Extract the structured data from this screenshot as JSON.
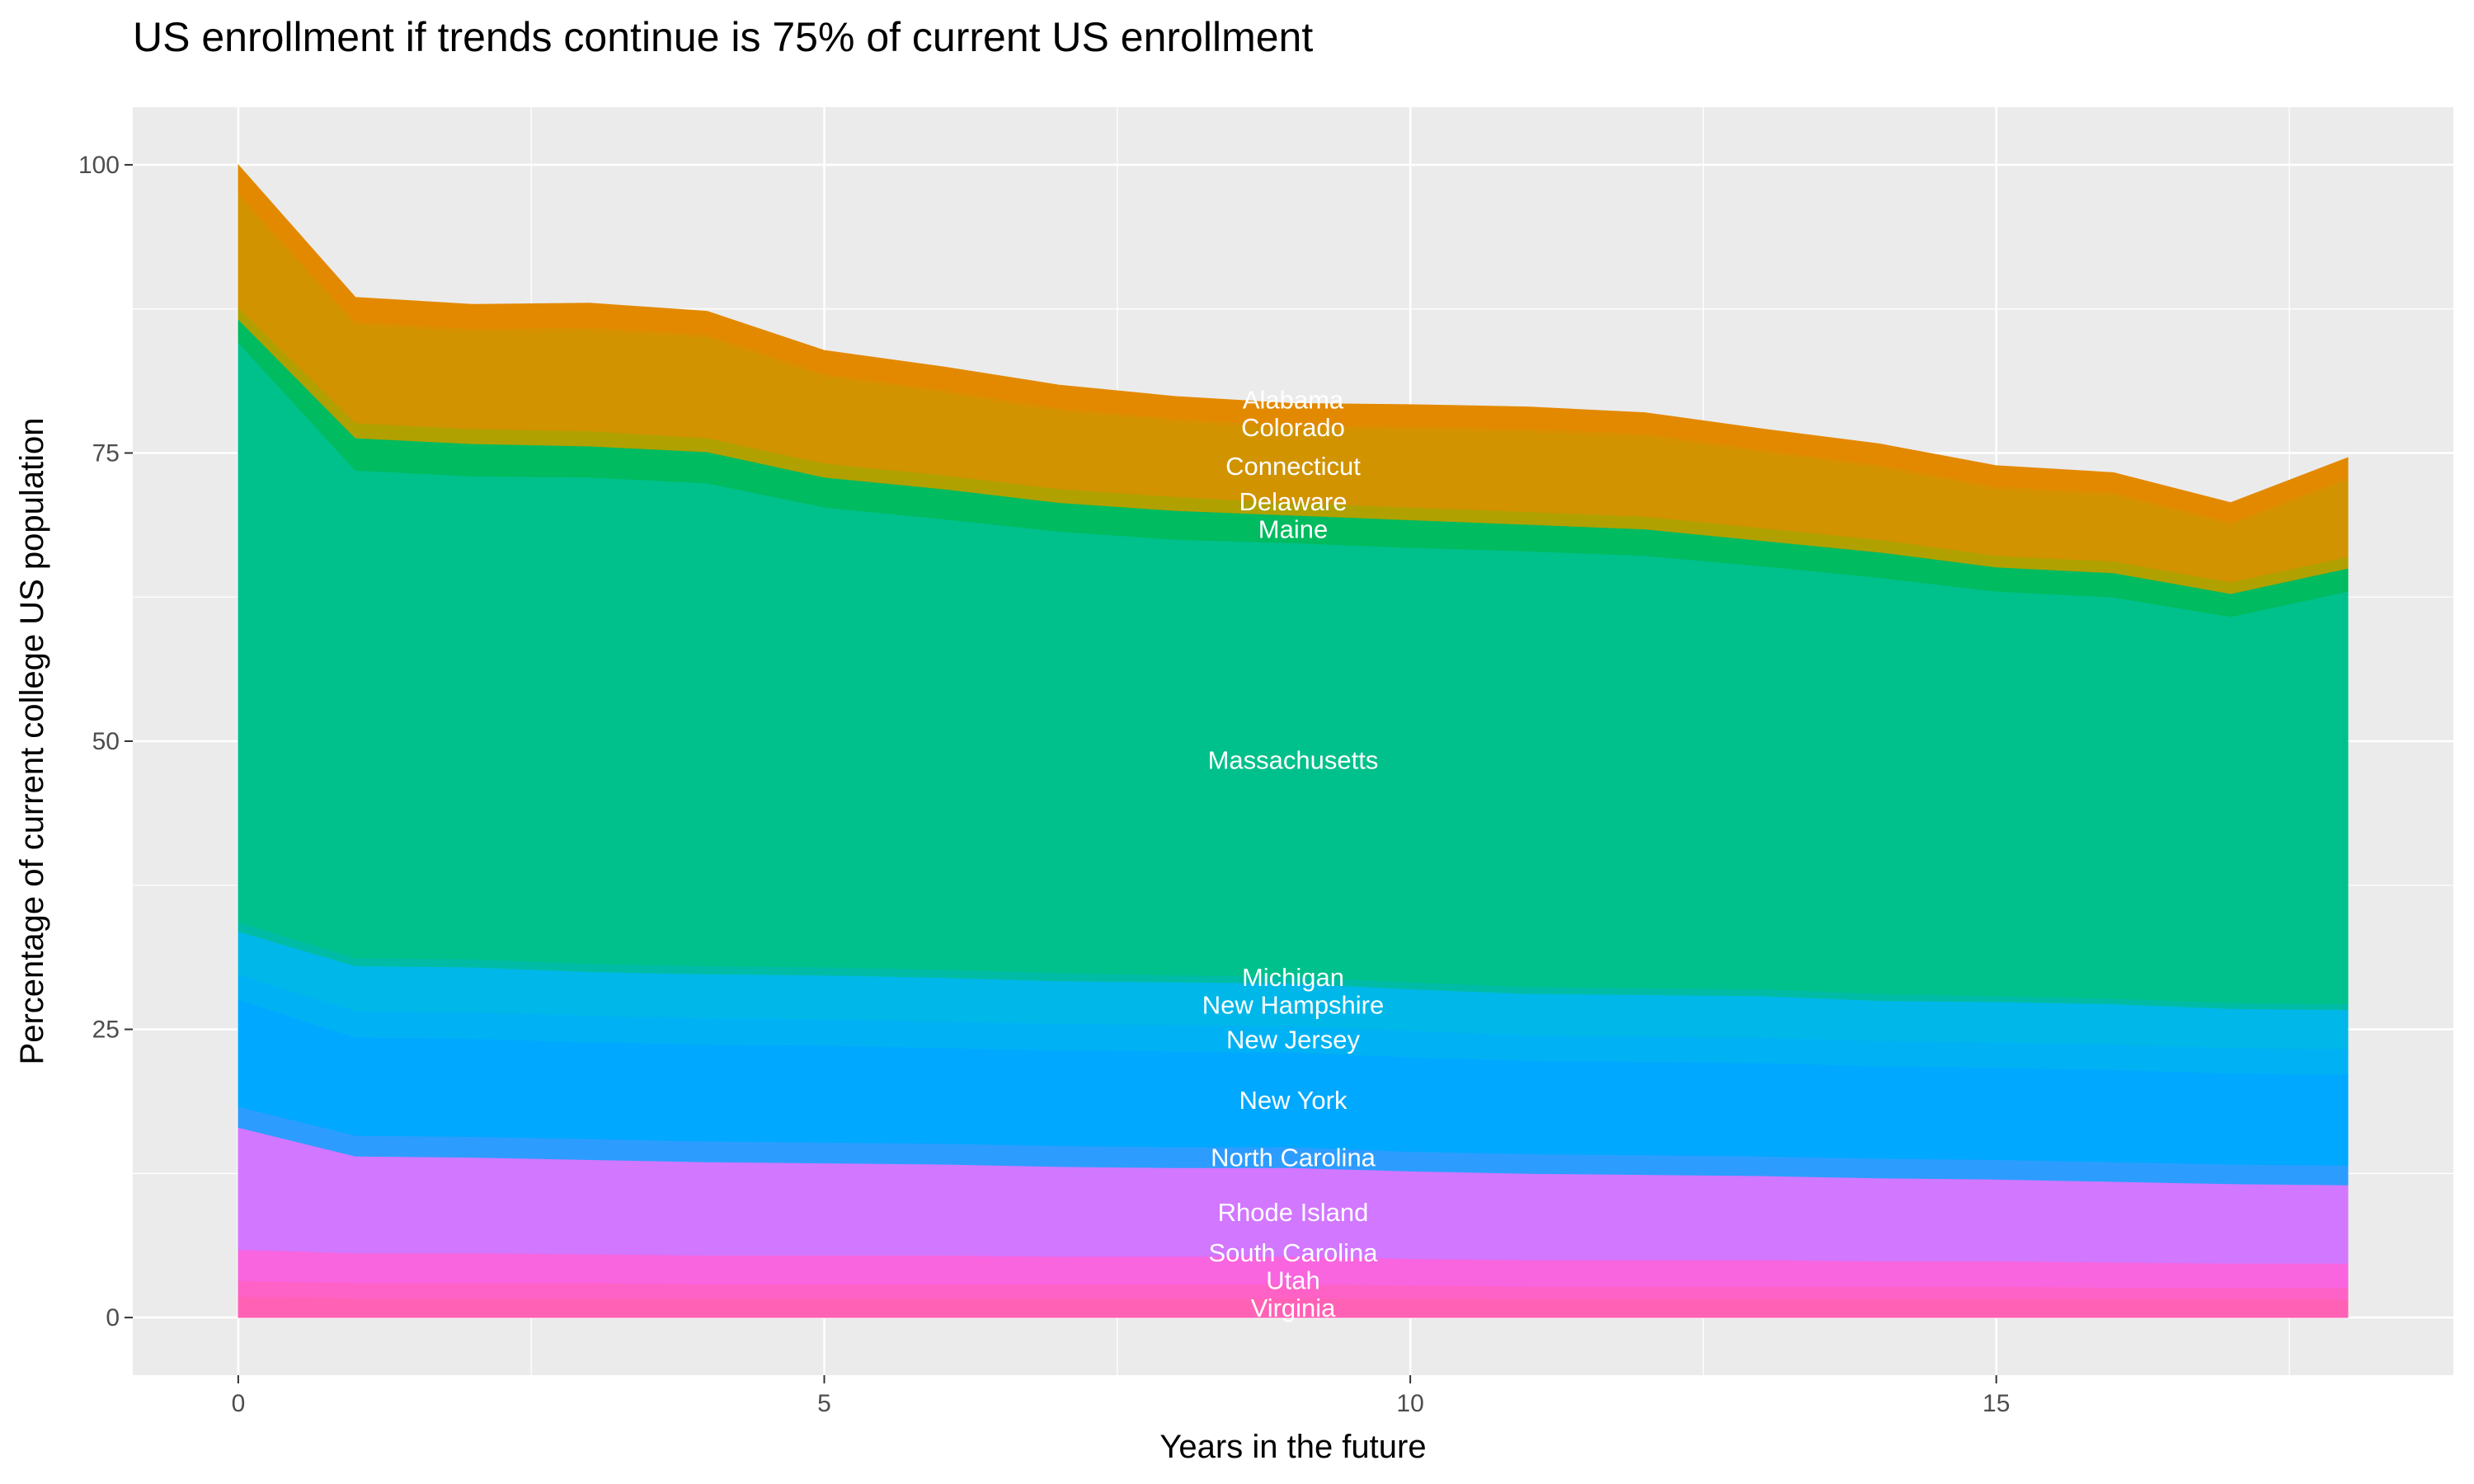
{
  "chart_data": {
    "type": "area",
    "stacked": true,
    "title": "US enrollment if trends continue is 75% of current US enrollment",
    "xlabel": "Years in the future",
    "ylabel": "Percentage of current college US population",
    "xlim": [
      -0.9,
      18.9
    ],
    "ylim": [
      -5,
      105
    ],
    "xticks": [
      0,
      5,
      10,
      15
    ],
    "yticks": [
      0,
      25,
      50,
      75,
      100
    ],
    "grid": true,
    "legend": "none (direct labels)",
    "x": [
      0,
      1,
      2,
      3,
      4,
      5,
      6,
      7,
      8,
      9,
      10,
      11,
      12,
      13,
      14,
      15,
      16,
      17,
      18
    ],
    "series": [
      {
        "name": "Virginia",
        "color": "#ff61b5",
        "values": [
          1.8,
          1.7,
          1.7,
          1.7,
          1.7,
          1.7,
          1.7,
          1.7,
          1.7,
          1.7,
          1.7,
          1.6,
          1.6,
          1.6,
          1.6,
          1.6,
          1.6,
          1.6,
          1.6
        ]
      },
      {
        "name": "Utah",
        "color": "#ff62c6",
        "values": [
          1.4,
          1.3,
          1.3,
          1.3,
          1.2,
          1.2,
          1.2,
          1.2,
          1.2,
          1.2,
          1.1,
          1.1,
          1.1,
          1.1,
          1.1,
          1.1,
          1.0,
          1.0,
          1.0
        ]
      },
      {
        "name": "South Carolina",
        "color": "#f964df",
        "values": [
          2.7,
          2.6,
          2.6,
          2.5,
          2.5,
          2.5,
          2.5,
          2.4,
          2.4,
          2.4,
          2.3,
          2.3,
          2.3,
          2.3,
          2.2,
          2.2,
          2.2,
          2.1,
          2.1
        ]
      },
      {
        "name": "Rhode Island",
        "color": "#d277ff",
        "values": [
          10.6,
          8.4,
          8.3,
          8.2,
          8.1,
          8.0,
          7.9,
          7.8,
          7.7,
          7.7,
          7.6,
          7.5,
          7.4,
          7.3,
          7.2,
          7.1,
          7.0,
          6.9,
          6.8
        ]
      },
      {
        "name": "North Carolina",
        "color": "#2c9dff",
        "values": [
          1.8,
          1.8,
          1.8,
          1.8,
          1.8,
          1.8,
          1.8,
          1.8,
          1.8,
          1.8,
          1.7,
          1.7,
          1.7,
          1.7,
          1.7,
          1.7,
          1.7,
          1.7,
          1.7
        ]
      },
      {
        "name": "New York",
        "color": "#00a8ff",
        "values": [
          9.3,
          8.5,
          8.5,
          8.4,
          8.4,
          8.4,
          8.3,
          8.3,
          8.3,
          8.2,
          8.2,
          8.1,
          8.1,
          8.1,
          8.0,
          8.0,
          8.0,
          7.9,
          7.9
        ]
      },
      {
        "name": "New Jersey",
        "color": "#00b2f3",
        "values": [
          2.2,
          2.3,
          2.3,
          2.3,
          2.3,
          2.3,
          2.3,
          2.3,
          2.3,
          2.3,
          2.3,
          2.2,
          2.2,
          2.2,
          2.2,
          2.2,
          2.2,
          2.2,
          2.2
        ]
      },
      {
        "name": "New Hampshire",
        "color": "#00b7e9",
        "values": [
          3.7,
          3.9,
          3.9,
          3.8,
          3.8,
          3.8,
          3.8,
          3.7,
          3.7,
          3.7,
          3.6,
          3.6,
          3.6,
          3.6,
          3.5,
          3.5,
          3.5,
          3.4,
          3.4
        ]
      },
      {
        "name": "Michigan",
        "color": "#00bca6",
        "values": [
          0.8,
          0.7,
          0.7,
          0.7,
          0.7,
          0.7,
          0.7,
          0.7,
          0.6,
          0.6,
          0.6,
          0.6,
          0.6,
          0.6,
          0.6,
          0.5,
          0.5,
          0.5,
          0.5
        ]
      },
      {
        "name": "Massachusetts",
        "color": "#00c08b",
        "values": [
          50.3,
          42.3,
          41.9,
          42.2,
          41.9,
          39.9,
          39.1,
          38.3,
          37.8,
          37.6,
          37.7,
          37.8,
          37.5,
          36.7,
          36.1,
          35.1,
          34.8,
          33.5,
          35.8
        ]
      },
      {
        "name": "Maine",
        "color": "#00bb5f",
        "values": [
          2.0,
          2.8,
          2.8,
          2.7,
          2.7,
          2.6,
          2.6,
          2.5,
          2.5,
          2.4,
          2.4,
          2.3,
          2.3,
          2.2,
          2.2,
          2.1,
          2.1,
          2.0,
          2.0
        ]
      },
      {
        "name": "Delaware",
        "color": "#b0a100",
        "values": [
          1.0,
          1.3,
          1.3,
          1.3,
          1.2,
          1.2,
          1.2,
          1.2,
          1.2,
          1.1,
          1.1,
          1.1,
          1.1,
          1.1,
          1.1,
          1.0,
          1.0,
          1.0,
          1.0
        ]
      },
      {
        "name": "Connecticut",
        "color": "#d19300",
        "values": [
          9.6,
          8.5,
          8.4,
          8.7,
          8.7,
          7.5,
          7.1,
          6.7,
          6.5,
          6.4,
          6.7,
          6.9,
          6.9,
          6.5,
          6.2,
          5.7,
          5.7,
          4.9,
          6.6
        ]
      },
      {
        "name": "Colorado",
        "color": "#d99000",
        "values": [
          0.4,
          0.3,
          0.3,
          0.3,
          0.3,
          0.3,
          0.3,
          0.3,
          0.3,
          0.3,
          0.3,
          0.3,
          0.3,
          0.3,
          0.3,
          0.3,
          0.3,
          0.3,
          0.3
        ]
      },
      {
        "name": "Alabama",
        "color": "#e38900",
        "values": [
          2.4,
          2.1,
          2.1,
          2.1,
          2.0,
          2.0,
          2.0,
          2.0,
          1.9,
          1.9,
          1.9,
          1.9,
          1.8,
          1.8,
          1.8,
          1.8,
          1.7,
          1.7,
          1.7
        ]
      }
    ]
  }
}
